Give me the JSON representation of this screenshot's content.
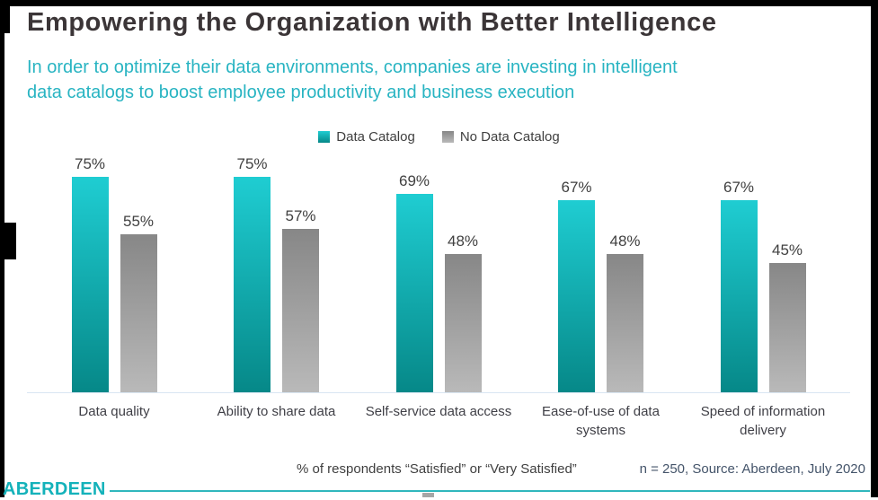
{
  "header": {
    "title": "Empowering the Organization with Better Intelligence",
    "subtitle_line1": "In order to optimize their data environments, companies are investing in intelligent",
    "subtitle_line2": "data catalogs to boost employee productivity and business execution"
  },
  "legend": {
    "items": [
      {
        "label": "Data Catalog",
        "color_top": "#1fcdd2",
        "color_bottom": "#068888"
      },
      {
        "label": "No Data Catalog",
        "color_top": "#878787",
        "color_bottom": "#b9b9b9"
      }
    ]
  },
  "chart_data": {
    "type": "bar",
    "title": "",
    "xlabel": "",
    "ylabel": "% of respondents “Satisfied” or “Very Satisfied”",
    "categories": [
      "Data quality",
      "Ability to share data",
      "Self-service data access",
      "Ease-of-use of data systems",
      "Speed of information delivery"
    ],
    "series": [
      {
        "name": "Data Catalog",
        "values": [
          75,
          75,
          69,
          67,
          67
        ],
        "color_top": "#1fcdd2",
        "color_bottom": "#068888"
      },
      {
        "name": "No Data Catalog",
        "values": [
          55,
          57,
          48,
          48,
          45
        ],
        "color_top": "#878787",
        "color_bottom": "#b9b9b9"
      }
    ],
    "value_suffix": "%",
    "ylim": [
      0,
      100
    ],
    "grid": false,
    "legend_position": "top",
    "data_labels": true
  },
  "footer": {
    "note": "% of respondents “Satisfied” or “Very Satisfied”",
    "source": "n = 250, Source: Aberdeen, July 2020",
    "logo": "ABERDEEN"
  },
  "colors": {
    "accent_teal": "#28b4c2",
    "title_text": "#3b3537",
    "body_text": "#404040",
    "source_text": "#44546a",
    "axis_line": "#d9e6f2",
    "logo_teal": "#14b2ba",
    "frame_black": "#000000"
  }
}
